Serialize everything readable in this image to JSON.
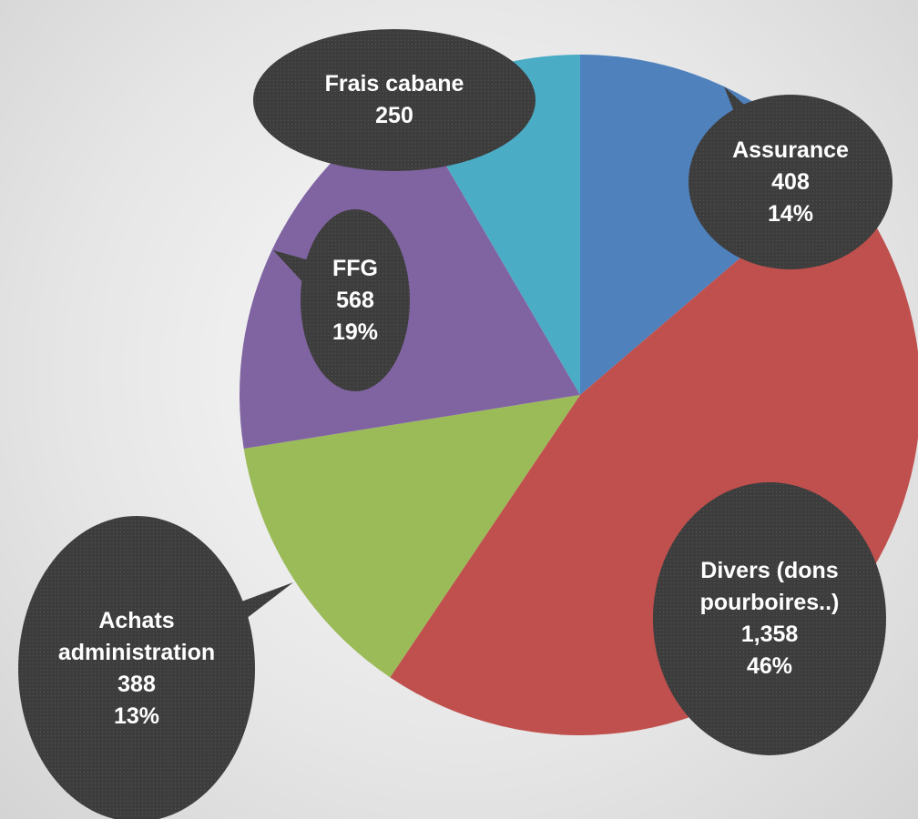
{
  "chart_data": {
    "type": "pie",
    "categories": [
      "Assurance",
      "Divers (dons pourboires..)",
      "Achats administration",
      "FFG",
      "Frais cabane"
    ],
    "values": [
      408,
      1358,
      388,
      568,
      250
    ],
    "value_labels": [
      "408",
      "1,358",
      "388",
      "568",
      "250"
    ],
    "percent_labels": [
      "14%",
      "46%",
      "13%",
      "19%",
      null
    ],
    "colors": [
      "#4f81bd",
      "#c0504d",
      "#9bbb59",
      "#8064a2",
      "#4bacc6"
    ]
  }
}
